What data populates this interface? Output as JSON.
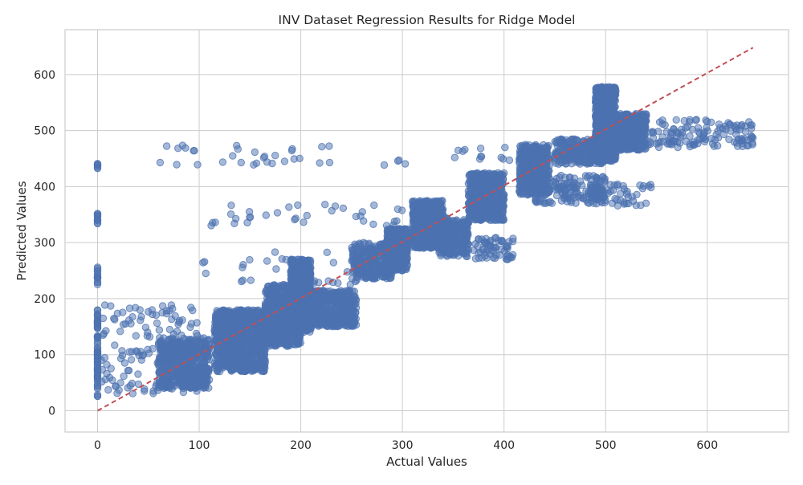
{
  "chart_data": {
    "type": "scatter",
    "title": "INV Dataset Regression Results for Ridge Model",
    "xlabel": "Actual Values",
    "ylabel": "Predicted Values",
    "xlim": [
      -32,
      680
    ],
    "ylim": [
      -38,
      680
    ],
    "x_ticks": [
      0,
      100,
      200,
      300,
      400,
      500,
      600
    ],
    "y_ticks": [
      0,
      100,
      200,
      300,
      400,
      500,
      600
    ],
    "x_tick_labels": [
      "0",
      "100",
      "200",
      "300",
      "400",
      "500",
      "600"
    ],
    "y_tick_labels": [
      "0",
      "100",
      "200",
      "300",
      "400",
      "500",
      "600"
    ],
    "grid": true,
    "legend": "none",
    "reference_line": {
      "style": "dashed",
      "color": "#c44e52",
      "x": [
        0,
        645
      ],
      "y": [
        0,
        648
      ]
    },
    "series_color": "#4c72b0",
    "clusters": [
      {
        "x": [
          0,
          0
        ],
        "y": [
          25,
          180
        ],
        "n": 70
      },
      {
        "x": [
          0,
          0
        ],
        "y": [
          225,
          260
        ],
        "n": 14
      },
      {
        "x": [
          0,
          0
        ],
        "y": [
          328,
          352
        ],
        "n": 10
      },
      {
        "x": [
          0,
          0
        ],
        "y": [
          432,
          445
        ],
        "n": 6
      },
      {
        "x": [
          3,
          100
        ],
        "y": [
          30,
          190
        ],
        "n": 150
      },
      {
        "x": [
          60,
          110
        ],
        "y": [
          40,
          130
        ],
        "n": 520
      },
      {
        "x": [
          115,
          165
        ],
        "y": [
          70,
          180
        ],
        "n": 900
      },
      {
        "x": [
          165,
          200
        ],
        "y": [
          115,
          225
        ],
        "n": 600
      },
      {
        "x": [
          190,
          210
        ],
        "y": [
          140,
          270
        ],
        "n": 650
      },
      {
        "x": [
          205,
          255
        ],
        "y": [
          150,
          215
        ],
        "n": 450
      },
      {
        "x": [
          250,
          290
        ],
        "y": [
          235,
          300
        ],
        "n": 300
      },
      {
        "x": [
          285,
          305
        ],
        "y": [
          250,
          325
        ],
        "n": 450
      },
      {
        "x": [
          310,
          340
        ],
        "y": [
          290,
          375
        ],
        "n": 550
      },
      {
        "x": [
          335,
          365
        ],
        "y": [
          275,
          345
        ],
        "n": 300
      },
      {
        "x": [
          365,
          400
        ],
        "y": [
          340,
          425
        ],
        "n": 500
      },
      {
        "x": [
          370,
          410
        ],
        "y": [
          270,
          310
        ],
        "n": 60
      },
      {
        "x": [
          415,
          445
        ],
        "y": [
          385,
          475
        ],
        "n": 450
      },
      {
        "x": [
          430,
          500
        ],
        "y": [
          370,
          420
        ],
        "n": 150
      },
      {
        "x": [
          450,
          500
        ],
        "y": [
          440,
          485
        ],
        "n": 250
      },
      {
        "x": [
          490,
          510
        ],
        "y": [
          445,
          578
        ],
        "n": 800
      },
      {
        "x": [
          500,
          540
        ],
        "y": [
          465,
          530
        ],
        "n": 600
      },
      {
        "x": [
          540,
          645
        ],
        "y": [
          470,
          520
        ],
        "n": 130
      },
      {
        "x": [
          480,
          545
        ],
        "y": [
          365,
          405
        ],
        "n": 60
      },
      {
        "x": [
          100,
          260
        ],
        "y": [
          225,
          290
        ],
        "n": 30
      },
      {
        "x": [
          110,
          300
        ],
        "y": [
          330,
          370
        ],
        "n": 35
      },
      {
        "x": [
          55,
          305
        ],
        "y": [
          435,
          475
        ],
        "n": 35
      },
      {
        "x": [
          350,
          410
        ],
        "y": [
          445,
          470
        ],
        "n": 12
      }
    ]
  }
}
